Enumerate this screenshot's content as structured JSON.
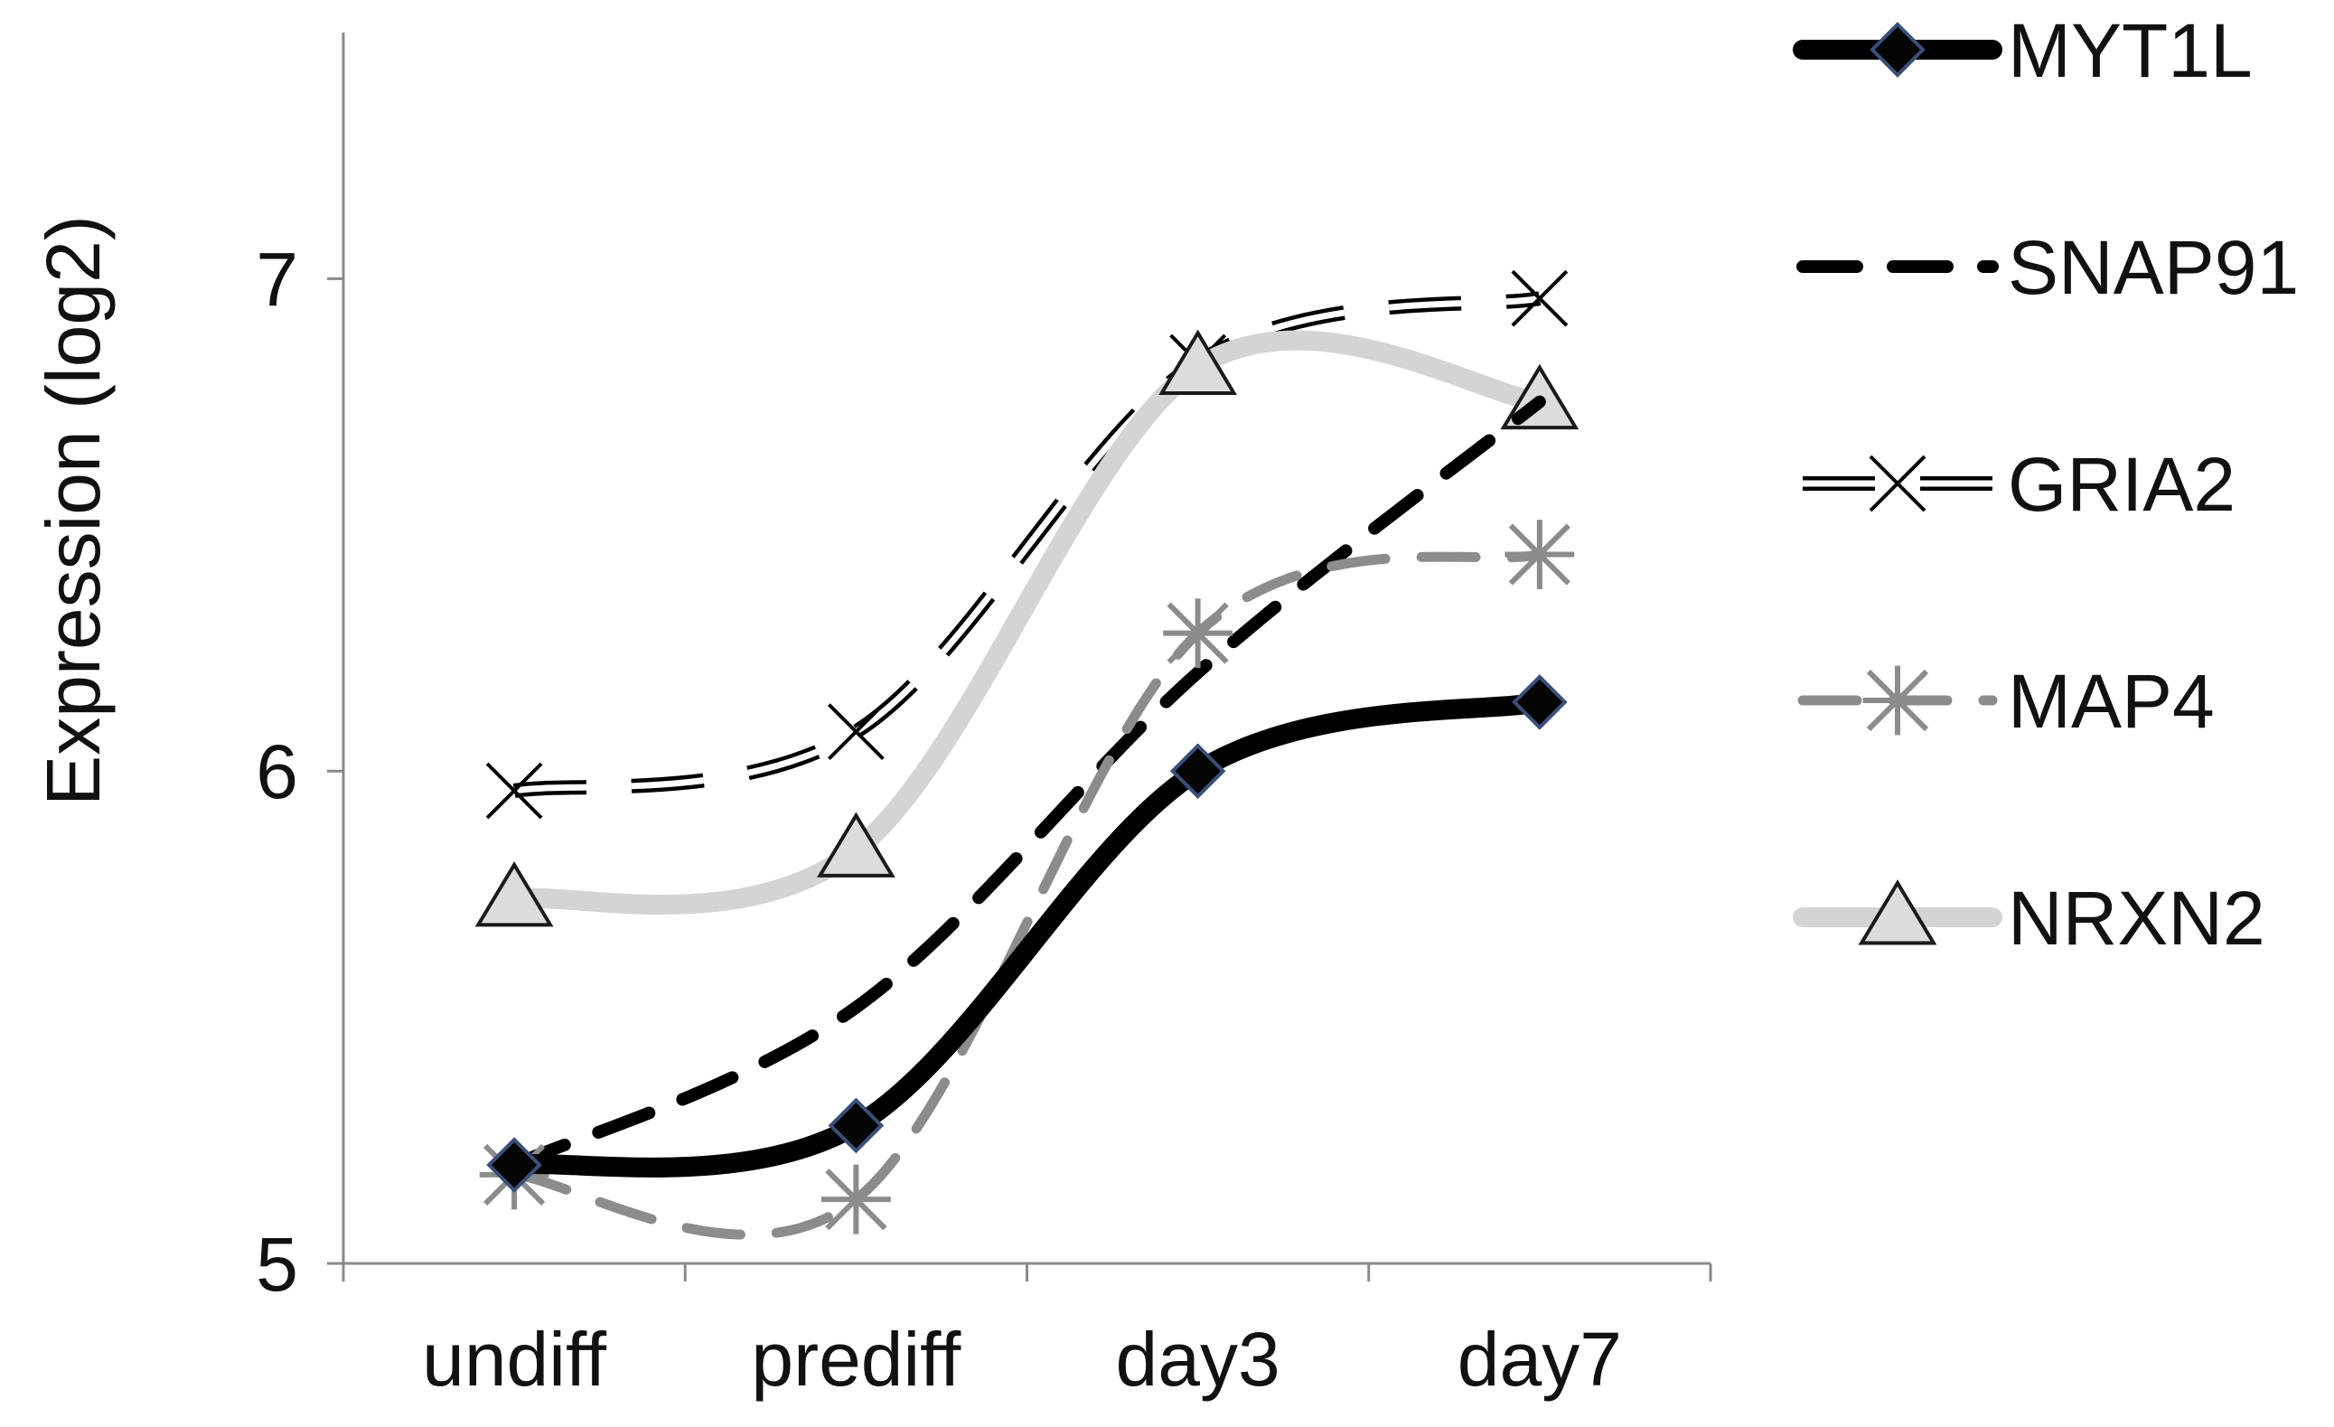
{
  "chart_data": {
    "type": "line",
    "ylabel": "Expression (log2)",
    "categories": [
      "undiff",
      "prediff",
      "day3",
      "day7"
    ],
    "ylim": [
      5,
      7.5
    ],
    "yticks": [
      5,
      6,
      7
    ],
    "grid": false,
    "legend_position": "right",
    "series": [
      {
        "name": "GRIA2",
        "values": [
          5.96,
          6.08,
          6.83,
          6.96
        ],
        "color": "#000000",
        "style": "double-dash",
        "marker": "x"
      },
      {
        "name": "NRXN2",
        "values": [
          5.74,
          5.84,
          6.82,
          6.75
        ],
        "color": "#d4d4d4",
        "style": "solid-thick",
        "marker": "triangle"
      },
      {
        "name": "SNAP91",
        "values": [
          5.2,
          5.52,
          6.2,
          6.75
        ],
        "color": "#000000",
        "style": "dashed",
        "marker": "none"
      },
      {
        "name": "MAP4",
        "values": [
          5.18,
          5.13,
          6.28,
          6.44
        ],
        "color": "#8c8c8c",
        "style": "dashed",
        "marker": "asterisk"
      },
      {
        "name": "MYT1L",
        "values": [
          5.2,
          5.28,
          6.0,
          6.14
        ],
        "color": "#000000",
        "style": "solid-thick",
        "marker": "diamond"
      }
    ],
    "legend": [
      {
        "name": "MYT1L",
        "series": "MYT1L"
      },
      {
        "name": "SNAP91",
        "series": "SNAP91"
      },
      {
        "name": "GRIA2",
        "series": "GRIA2"
      },
      {
        "name": "MAP4",
        "series": "MAP4"
      },
      {
        "name": "NRXN2",
        "series": "NRXN2"
      }
    ]
  }
}
